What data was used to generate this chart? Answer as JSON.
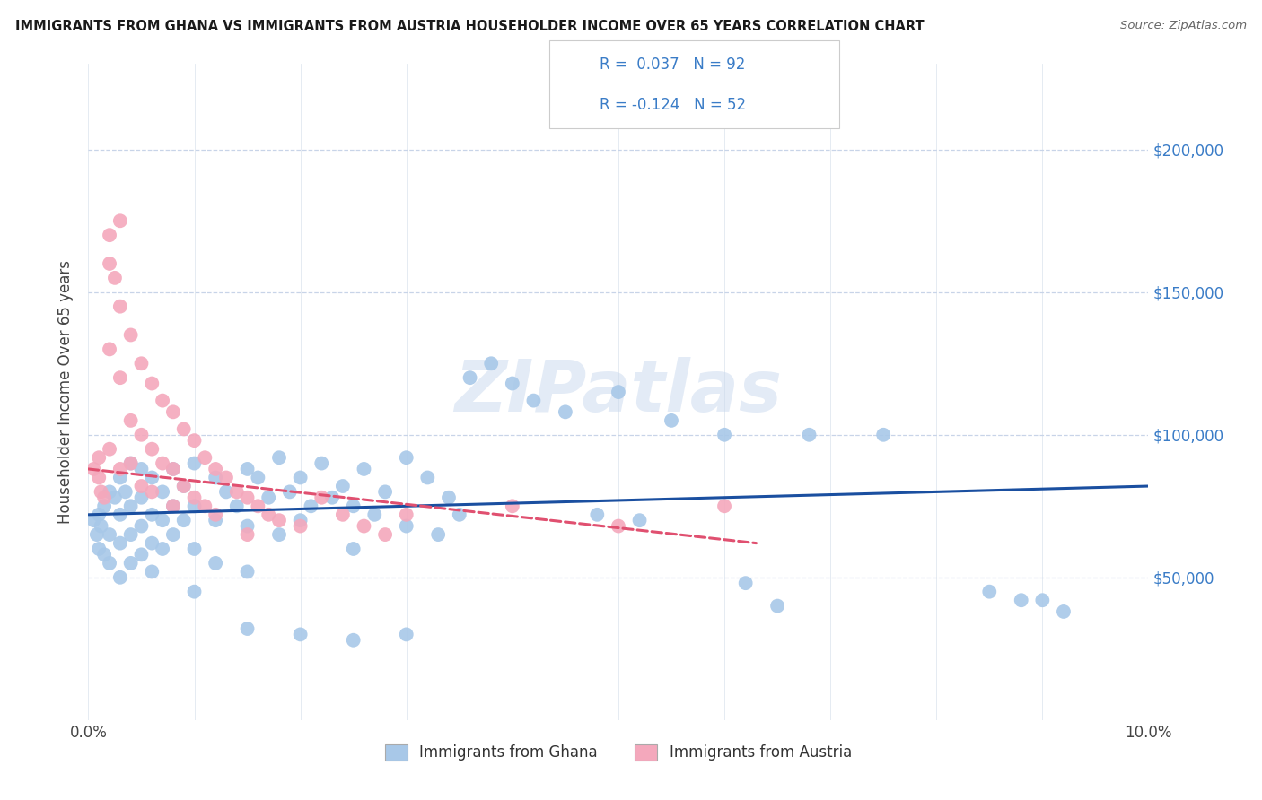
{
  "title": "IMMIGRANTS FROM GHANA VS IMMIGRANTS FROM AUSTRIA HOUSEHOLDER INCOME OVER 65 YEARS CORRELATION CHART",
  "source": "Source: ZipAtlas.com",
  "ylabel": "Householder Income Over 65 years",
  "ghana_R": 0.037,
  "ghana_N": 92,
  "austria_R": -0.124,
  "austria_N": 52,
  "ghana_color": "#a8c8e8",
  "austria_color": "#f4a8bc",
  "ghana_line_color": "#1a4fa0",
  "austria_line_color": "#e05070",
  "watermark": "ZIPatlas",
  "xlim": [
    0.0,
    0.1
  ],
  "ylim": [
    0,
    230000
  ],
  "yticks": [
    50000,
    100000,
    150000,
    200000
  ],
  "ytick_labels": [
    "$50,000",
    "$100,000",
    "$150,000",
    "$200,000"
  ],
  "ghana_scatter": [
    [
      0.0005,
      70000
    ],
    [
      0.0008,
      65000
    ],
    [
      0.001,
      72000
    ],
    [
      0.001,
      60000
    ],
    [
      0.0012,
      68000
    ],
    [
      0.0015,
      75000
    ],
    [
      0.0015,
      58000
    ],
    [
      0.002,
      80000
    ],
    [
      0.002,
      65000
    ],
    [
      0.002,
      55000
    ],
    [
      0.0025,
      78000
    ],
    [
      0.003,
      85000
    ],
    [
      0.003,
      72000
    ],
    [
      0.003,
      62000
    ],
    [
      0.003,
      50000
    ],
    [
      0.0035,
      80000
    ],
    [
      0.004,
      90000
    ],
    [
      0.004,
      75000
    ],
    [
      0.004,
      65000
    ],
    [
      0.004,
      55000
    ],
    [
      0.005,
      88000
    ],
    [
      0.005,
      78000
    ],
    [
      0.005,
      68000
    ],
    [
      0.005,
      58000
    ],
    [
      0.006,
      85000
    ],
    [
      0.006,
      72000
    ],
    [
      0.006,
      62000
    ],
    [
      0.006,
      52000
    ],
    [
      0.007,
      80000
    ],
    [
      0.007,
      70000
    ],
    [
      0.007,
      60000
    ],
    [
      0.008,
      88000
    ],
    [
      0.008,
      75000
    ],
    [
      0.008,
      65000
    ],
    [
      0.009,
      82000
    ],
    [
      0.009,
      70000
    ],
    [
      0.01,
      90000
    ],
    [
      0.01,
      75000
    ],
    [
      0.01,
      60000
    ],
    [
      0.01,
      45000
    ],
    [
      0.012,
      85000
    ],
    [
      0.012,
      70000
    ],
    [
      0.012,
      55000
    ],
    [
      0.013,
      80000
    ],
    [
      0.014,
      75000
    ],
    [
      0.015,
      88000
    ],
    [
      0.015,
      68000
    ],
    [
      0.015,
      52000
    ],
    [
      0.016,
      85000
    ],
    [
      0.017,
      78000
    ],
    [
      0.018,
      92000
    ],
    [
      0.018,
      65000
    ],
    [
      0.019,
      80000
    ],
    [
      0.02,
      85000
    ],
    [
      0.02,
      70000
    ],
    [
      0.021,
      75000
    ],
    [
      0.022,
      90000
    ],
    [
      0.023,
      78000
    ],
    [
      0.024,
      82000
    ],
    [
      0.025,
      75000
    ],
    [
      0.025,
      60000
    ],
    [
      0.026,
      88000
    ],
    [
      0.027,
      72000
    ],
    [
      0.028,
      80000
    ],
    [
      0.03,
      92000
    ],
    [
      0.03,
      68000
    ],
    [
      0.032,
      85000
    ],
    [
      0.033,
      65000
    ],
    [
      0.034,
      78000
    ],
    [
      0.035,
      72000
    ],
    [
      0.036,
      120000
    ],
    [
      0.038,
      125000
    ],
    [
      0.04,
      118000
    ],
    [
      0.042,
      112000
    ],
    [
      0.045,
      108000
    ],
    [
      0.048,
      72000
    ],
    [
      0.05,
      115000
    ],
    [
      0.052,
      70000
    ],
    [
      0.055,
      105000
    ],
    [
      0.06,
      100000
    ],
    [
      0.062,
      48000
    ],
    [
      0.065,
      40000
    ],
    [
      0.068,
      100000
    ],
    [
      0.075,
      100000
    ],
    [
      0.085,
      45000
    ],
    [
      0.088,
      42000
    ],
    [
      0.09,
      42000
    ],
    [
      0.092,
      38000
    ],
    [
      0.02,
      30000
    ],
    [
      0.025,
      28000
    ],
    [
      0.015,
      32000
    ],
    [
      0.03,
      30000
    ]
  ],
  "austria_scatter": [
    [
      0.0005,
      88000
    ],
    [
      0.001,
      85000
    ],
    [
      0.001,
      92000
    ],
    [
      0.0012,
      80000
    ],
    [
      0.0015,
      78000
    ],
    [
      0.002,
      170000
    ],
    [
      0.002,
      160000
    ],
    [
      0.002,
      130000
    ],
    [
      0.002,
      95000
    ],
    [
      0.0025,
      155000
    ],
    [
      0.003,
      175000
    ],
    [
      0.003,
      145000
    ],
    [
      0.003,
      120000
    ],
    [
      0.003,
      88000
    ],
    [
      0.004,
      135000
    ],
    [
      0.004,
      105000
    ],
    [
      0.004,
      90000
    ],
    [
      0.005,
      125000
    ],
    [
      0.005,
      100000
    ],
    [
      0.005,
      82000
    ],
    [
      0.006,
      118000
    ],
    [
      0.006,
      95000
    ],
    [
      0.006,
      80000
    ],
    [
      0.007,
      112000
    ],
    [
      0.007,
      90000
    ],
    [
      0.008,
      108000
    ],
    [
      0.008,
      88000
    ],
    [
      0.008,
      75000
    ],
    [
      0.009,
      102000
    ],
    [
      0.009,
      82000
    ],
    [
      0.01,
      98000
    ],
    [
      0.01,
      78000
    ],
    [
      0.011,
      92000
    ],
    [
      0.011,
      75000
    ],
    [
      0.012,
      88000
    ],
    [
      0.012,
      72000
    ],
    [
      0.013,
      85000
    ],
    [
      0.014,
      80000
    ],
    [
      0.015,
      78000
    ],
    [
      0.015,
      65000
    ],
    [
      0.016,
      75000
    ],
    [
      0.017,
      72000
    ],
    [
      0.018,
      70000
    ],
    [
      0.02,
      68000
    ],
    [
      0.022,
      78000
    ],
    [
      0.024,
      72000
    ],
    [
      0.026,
      68000
    ],
    [
      0.028,
      65000
    ],
    [
      0.03,
      72000
    ],
    [
      0.04,
      75000
    ],
    [
      0.05,
      68000
    ],
    [
      0.06,
      75000
    ]
  ],
  "ghana_line_x": [
    0.0,
    0.1
  ],
  "ghana_line_y": [
    72000,
    82000
  ],
  "austria_line_x": [
    0.0,
    0.063
  ],
  "austria_line_y": [
    88000,
    62000
  ]
}
